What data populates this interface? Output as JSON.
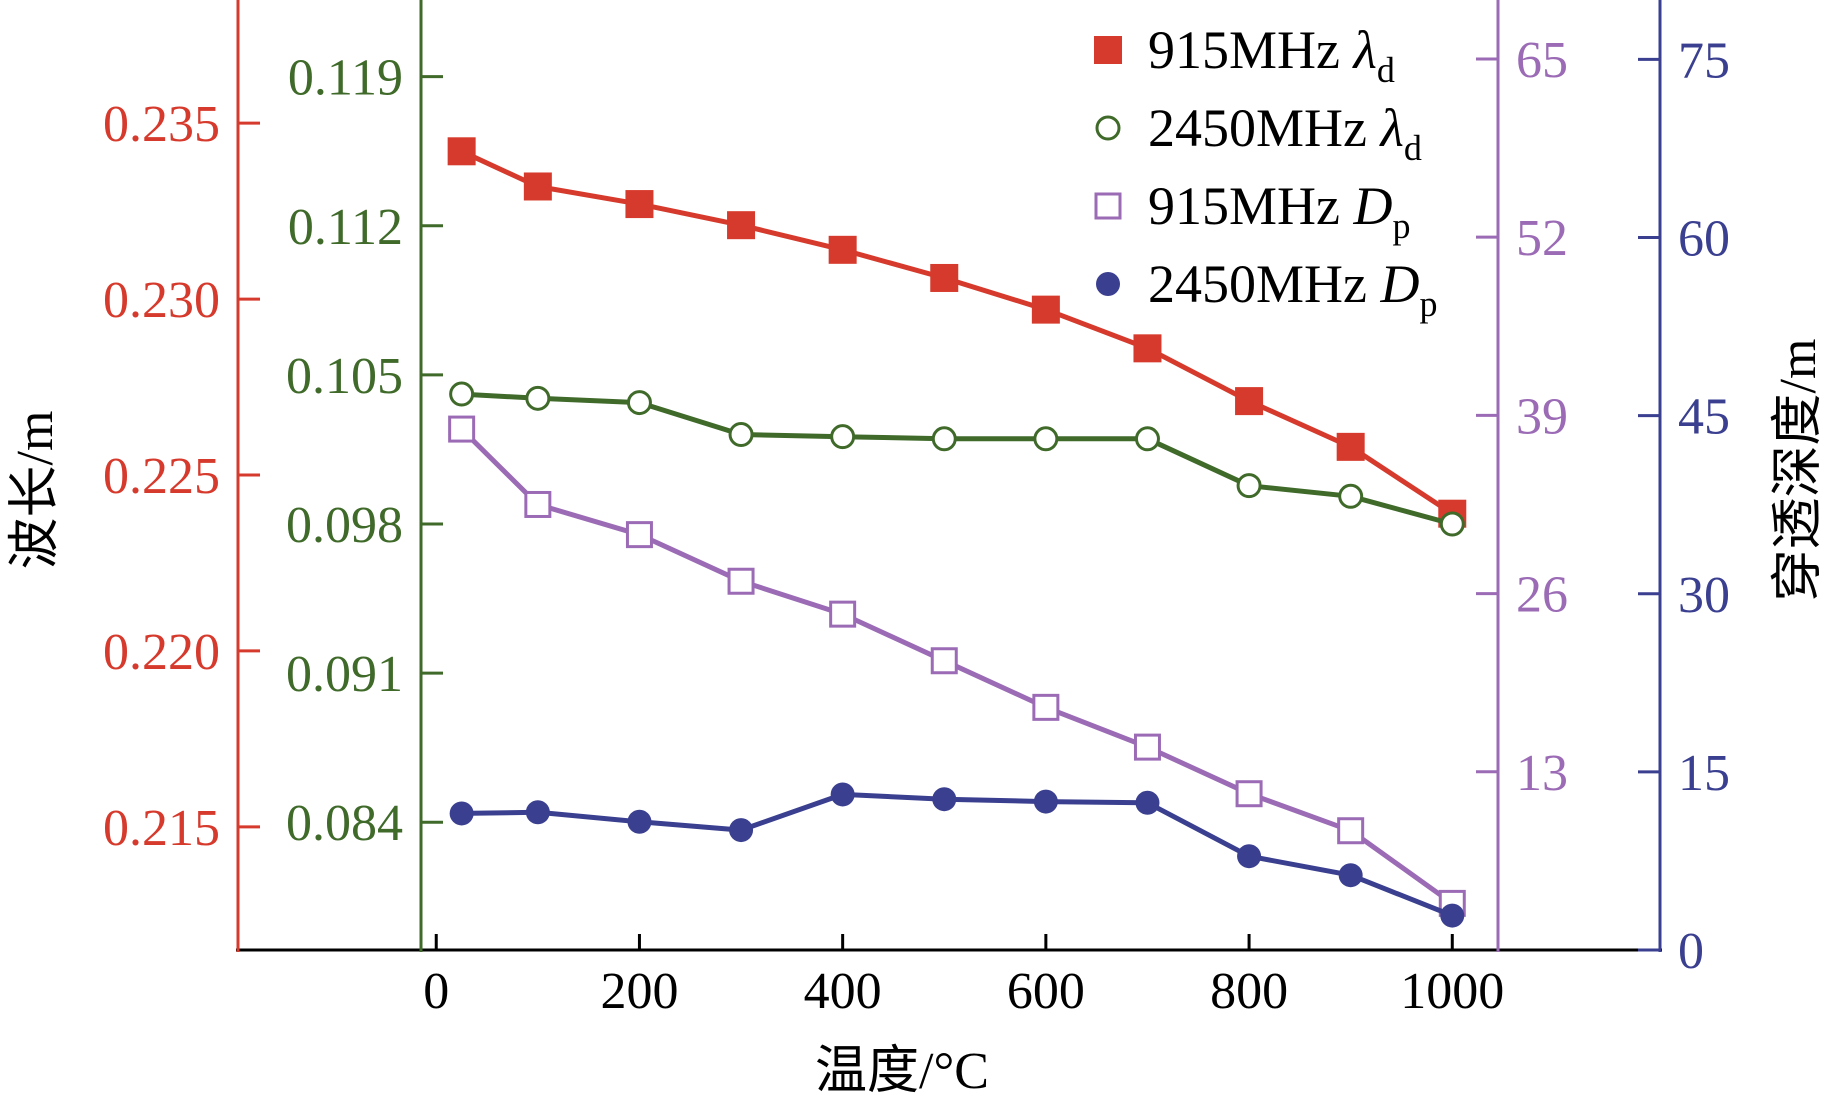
{
  "colors": {
    "axis_black": "#000000",
    "wavelength_915": "#d63a2c",
    "wavelength_2450": "#3f6a2a",
    "depth_915": "#9b6bb5",
    "depth_2450": "#3a3f8f"
  },
  "chart_data": {
    "type": "line",
    "xlabel": "温度/°C",
    "x": [
      25,
      100,
      200,
      300,
      400,
      500,
      600,
      700,
      800,
      900,
      1000
    ],
    "x_ticks": [
      0,
      200,
      400,
      600,
      800,
      1000
    ],
    "x_tick_labels": [
      "0",
      "200",
      "400",
      "600",
      "800",
      "1000"
    ],
    "xlim": [
      -15,
      1045
    ],
    "left_label": "波长/m",
    "right_label": "穿透深度/m",
    "axes": [
      {
        "id": "lambda915",
        "side": "left-outer",
        "color_key": "wavelength_915",
        "lim": [
          0.2115,
          0.2385
        ],
        "ticks": [
          0.215,
          0.22,
          0.225,
          0.23,
          0.235
        ],
        "tick_labels": [
          "0.215",
          "0.220",
          "0.225",
          "0.230",
          "0.235"
        ]
      },
      {
        "id": "lambda2450",
        "side": "left-inner",
        "color_key": "wavelength_2450",
        "lim": [
          0.078,
          0.1226
        ],
        "ticks": [
          0.084,
          0.091,
          0.098,
          0.105,
          0.112,
          0.119
        ],
        "tick_labels": [
          "0.084",
          "0.091",
          "0.098",
          "0.105",
          "0.112",
          "0.119"
        ]
      },
      {
        "id": "dp915",
        "side": "right-inner",
        "color_key": "depth_915",
        "lim": [
          0,
          69.3
        ],
        "ticks": [
          13,
          26,
          39,
          52,
          65
        ],
        "tick_labels": [
          "13",
          "26",
          "39",
          "52",
          "65"
        ]
      },
      {
        "id": "dp2450",
        "side": "right-outer",
        "color_key": "depth_2450",
        "lim": [
          0,
          80
        ],
        "ticks": [
          0,
          15,
          30,
          45,
          60,
          75
        ],
        "tick_labels": [
          "0",
          "15",
          "30",
          "45",
          "60",
          "75"
        ]
      }
    ],
    "series": [
      {
        "name": "915MHz λd",
        "label_main": "915MHz",
        "label_symbol": "λ",
        "label_sub": "d",
        "axis": "lambda915",
        "marker": "filled-square",
        "color_key": "wavelength_915",
        "values": [
          0.2342,
          0.2332,
          0.2327,
          0.2321,
          0.2314,
          0.2306,
          0.2297,
          0.2286,
          0.2271,
          0.2258,
          0.2239
        ]
      },
      {
        "name": "2450MHz λd",
        "label_main": "2450MHz",
        "label_symbol": "λ",
        "label_sub": "d",
        "axis": "lambda2450",
        "marker": "open-circle",
        "color_key": "wavelength_2450",
        "values": [
          0.1041,
          0.1039,
          0.1037,
          0.1022,
          0.1021,
          0.102,
          0.102,
          0.102,
          0.0998,
          0.0993,
          0.098
        ]
      },
      {
        "name": "915MHz Dp",
        "label_main": "915MHz",
        "label_symbol": "D",
        "label_sub": "p",
        "axis": "dp915",
        "marker": "open-square",
        "color_key": "depth_915",
        "values": [
          38.0,
          32.5,
          30.3,
          26.9,
          24.5,
          21.1,
          17.7,
          14.8,
          11.4,
          8.7,
          3.4
        ]
      },
      {
        "name": "2450MHz Dp",
        "label_main": "2450MHz",
        "label_symbol": "D",
        "label_sub": "p",
        "axis": "dp2450",
        "marker": "filled-circle",
        "color_key": "depth_2450",
        "values": [
          11.5,
          11.6,
          10.8,
          10.1,
          13.1,
          12.7,
          12.5,
          12.4,
          7.9,
          6.3,
          2.9
        ]
      }
    ],
    "legend_position": "top-right"
  }
}
